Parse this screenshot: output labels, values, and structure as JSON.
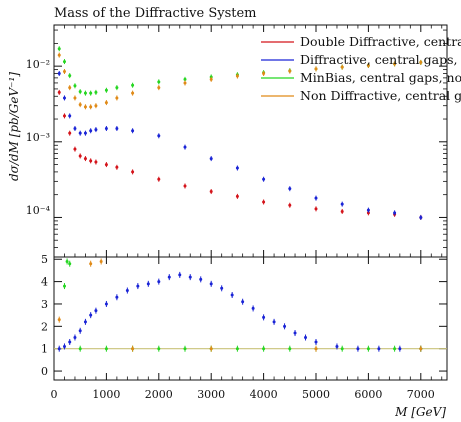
{
  "chart_data": [
    {
      "type": "scatter",
      "title": "Mass of the Diffractive System",
      "ylabel": "dσ/dM [pb/GeV⁻¹]",
      "yscale": "log",
      "ylim": [
        3e-05,
        0.035
      ],
      "xlim": [
        0,
        7500
      ],
      "ytick_labels": [
        "10⁻⁴",
        "10⁻³",
        "10⁻²"
      ],
      "legend": {
        "placement": "top-right",
        "entries": [
          {
            "label": "Double Diffractive, central",
            "color": "#d4141b"
          },
          {
            "label": "Diffractive, central gaps, n",
            "color": "#1a24d6"
          },
          {
            "label": "MinBias, central gaps, no",
            "color": "#25d621"
          },
          {
            "label": "Non Diffractive, central ga",
            "color": "#e08a17"
          }
        ]
      },
      "series": [
        {
          "color": "#d4141b",
          "x": [
            100,
            200,
            300,
            400,
            500,
            600,
            700,
            800,
            1000,
            1200,
            1500,
            2000,
            2500,
            3000,
            3500,
            4000,
            4500,
            5000,
            5500,
            6000,
            6500,
            7000
          ],
          "y": [
            0.0045,
            0.0022,
            0.0013,
            0.0008,
            0.00065,
            0.0006,
            0.00056,
            0.00054,
            0.0005,
            0.00046,
            0.0004,
            0.00032,
            0.00026,
            0.00022,
            0.00019,
            0.00016,
            0.000145,
            0.00013,
            0.00012,
            0.000115,
            0.00011,
            0.0001
          ]
        },
        {
          "color": "#1a24d6",
          "x": [
            100,
            200,
            300,
            400,
            500,
            600,
            700,
            800,
            1000,
            1200,
            1500,
            2000,
            2500,
            3000,
            3500,
            4000,
            4500,
            5000,
            5500,
            6000,
            6500,
            7000
          ],
          "y": [
            0.008,
            0.0038,
            0.0022,
            0.0015,
            0.0013,
            0.0013,
            0.0014,
            0.00145,
            0.0015,
            0.0015,
            0.0014,
            0.0012,
            0.00085,
            0.0006,
            0.00045,
            0.00032,
            0.00024,
            0.00018,
            0.00015,
            0.000125,
            0.000115,
            0.0001
          ]
        },
        {
          "color": "#25d621",
          "x": [
            100,
            200,
            300,
            400,
            500,
            600,
            700,
            800,
            1000,
            1200,
            1500,
            2000,
            2500,
            3000,
            3500,
            4000,
            4500,
            5000,
            5500,
            6000,
            6500,
            7000
          ],
          "y": [
            0.017,
            0.0115,
            0.0075,
            0.0055,
            0.0046,
            0.0044,
            0.0044,
            0.0045,
            0.0048,
            0.0052,
            0.0056,
            0.0062,
            0.0067,
            0.0072,
            0.0077,
            0.0082,
            0.0087,
            0.0092,
            0.0097,
            0.0102,
            0.0107,
            0.0112
          ]
        },
        {
          "color": "#e08a17",
          "x": [
            100,
            200,
            300,
            400,
            500,
            600,
            700,
            800,
            1000,
            1200,
            1500,
            2000,
            2500,
            3000,
            3500,
            4000,
            4500,
            5000,
            5500,
            6000,
            6500,
            7000
          ],
          "y": [
            0.014,
            0.0085,
            0.0052,
            0.0038,
            0.0031,
            0.0029,
            0.0029,
            0.003,
            0.0033,
            0.0038,
            0.0044,
            0.0052,
            0.006,
            0.0067,
            0.0074,
            0.008,
            0.0086,
            0.0092,
            0.0097,
            0.0102,
            0.0107,
            0.0112
          ]
        }
      ]
    },
    {
      "type": "scatter",
      "xlabel": "M [GeV]",
      "ylim": [
        -0.4,
        5.1
      ],
      "xlim": [
        0,
        7500
      ],
      "yticks": [
        0,
        1,
        2,
        3,
        4,
        5
      ],
      "xticks": [
        0,
        1000,
        2000,
        3000,
        4000,
        5000,
        6000,
        7000
      ],
      "reference_line": 1,
      "series": [
        {
          "color": "#1a24d6",
          "x": [
            100,
            200,
            300,
            400,
            500,
            600,
            700,
            800,
            1000,
            1200,
            1400,
            1600,
            1800,
            2000,
            2200,
            2400,
            2600,
            2800,
            3000,
            3200,
            3400,
            3600,
            3800,
            4000,
            4200,
            4400,
            4600,
            4800,
            5000,
            5400,
            5800,
            6200,
            6600,
            7000
          ],
          "y": [
            1.0,
            1.1,
            1.3,
            1.5,
            1.8,
            2.2,
            2.5,
            2.7,
            3.0,
            3.3,
            3.6,
            3.8,
            3.9,
            4.0,
            4.2,
            4.3,
            4.2,
            4.1,
            3.9,
            3.7,
            3.4,
            3.1,
            2.8,
            2.4,
            2.2,
            2.0,
            1.7,
            1.5,
            1.3,
            1.1,
            1.0,
            1.0,
            1.0,
            1.0
          ]
        },
        {
          "color": "#25d621",
          "x": [
            200,
            250,
            300,
            500,
            1000,
            1500,
            2000,
            2500,
            3000,
            3500,
            4000,
            4500,
            5000,
            5500,
            6000,
            6500,
            7000
          ],
          "y": [
            3.8,
            4.9,
            4.8,
            1.0,
            1.0,
            1.0,
            1.0,
            1.0,
            1.0,
            1.0,
            1.0,
            1.0,
            1.0,
            1.0,
            1.0,
            1.0,
            1.0
          ]
        },
        {
          "color": "#e08a17",
          "x": [
            100,
            700,
            900,
            1500,
            3000,
            5000,
            7000
          ],
          "y": [
            2.3,
            4.8,
            4.9,
            1.0,
            1.0,
            1.0,
            1.0
          ]
        }
      ]
    }
  ]
}
